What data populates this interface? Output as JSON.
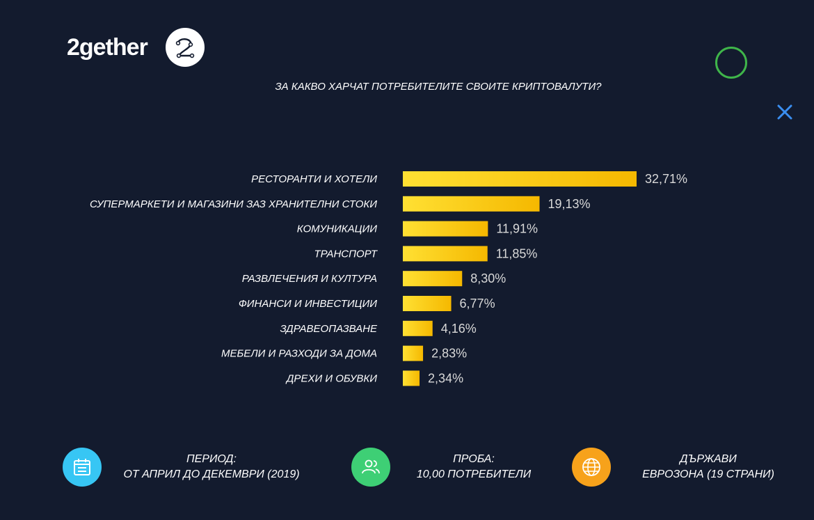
{
  "brand": {
    "name": "2gether",
    "badge_icon": "2-logo-icon"
  },
  "colors": {
    "background": "#131b2e",
    "bar_start": "#ffe033",
    "bar_end": "#f5b800",
    "value_text": "#d9d9d9",
    "deco_circle": "#3fb54a",
    "deco_x": "#3a8ef0",
    "calendar_bg": "#37c6f4",
    "users_bg": "#3ecf75",
    "globe_bg": "#f7a21b"
  },
  "chart_data": {
    "type": "bar",
    "orientation": "horizontal",
    "title": "ЗА КАКВО ХАРЧАТ ПОТРЕБИТЕЛИТЕ СВОИТЕ КРИПТОВАЛУТИ?",
    "categories": [
      "РЕСТОРАНТИ И ХОТЕЛИ",
      "СУПЕРМАРКЕТИ И МАГАЗИНИ ЗАЗ ХРАНИТЕЛНИ СТОКИ",
      "КОМУНИКАЦИИ",
      "ТРАНСПОРТ",
      "РАЗВЛЕЧЕНИЯ И КУЛТУРА",
      "ФИНАНСИ И ИНВЕСТИЦИИ",
      "ЗДРАВЕОПАЗВАНЕ",
      "МЕБЕЛИ И РАЗХОДИ ЗА ДОМА",
      "ДРЕХИ И ОБУВКИ"
    ],
    "values": [
      32.71,
      19.13,
      11.91,
      11.85,
      8.3,
      6.77,
      4.16,
      2.83,
      2.34
    ],
    "value_labels": [
      "32,71%",
      "19,13%",
      "11,91%",
      "11,85%",
      "8,30%",
      "6,77%",
      "4,16%",
      "2,83%",
      "2,34%"
    ],
    "xlim": [
      0,
      32.71
    ],
    "grid": false,
    "legend": "none"
  },
  "footer": {
    "period": {
      "icon": "calendar-icon",
      "line1": "ПЕРИОД:",
      "line2": "ОТ АПРИЛ ДО ДЕКЕМВРИ (2019)"
    },
    "sample": {
      "icon": "users-icon",
      "line1": "ПРОБА:",
      "line2": "10,00 ПОТРЕБИТЕЛИ"
    },
    "countries": {
      "icon": "globe-icon",
      "line1": "ДЪРЖАВИ",
      "line2": "ЕВРОЗОНА (19 СТРАНИ)"
    }
  }
}
